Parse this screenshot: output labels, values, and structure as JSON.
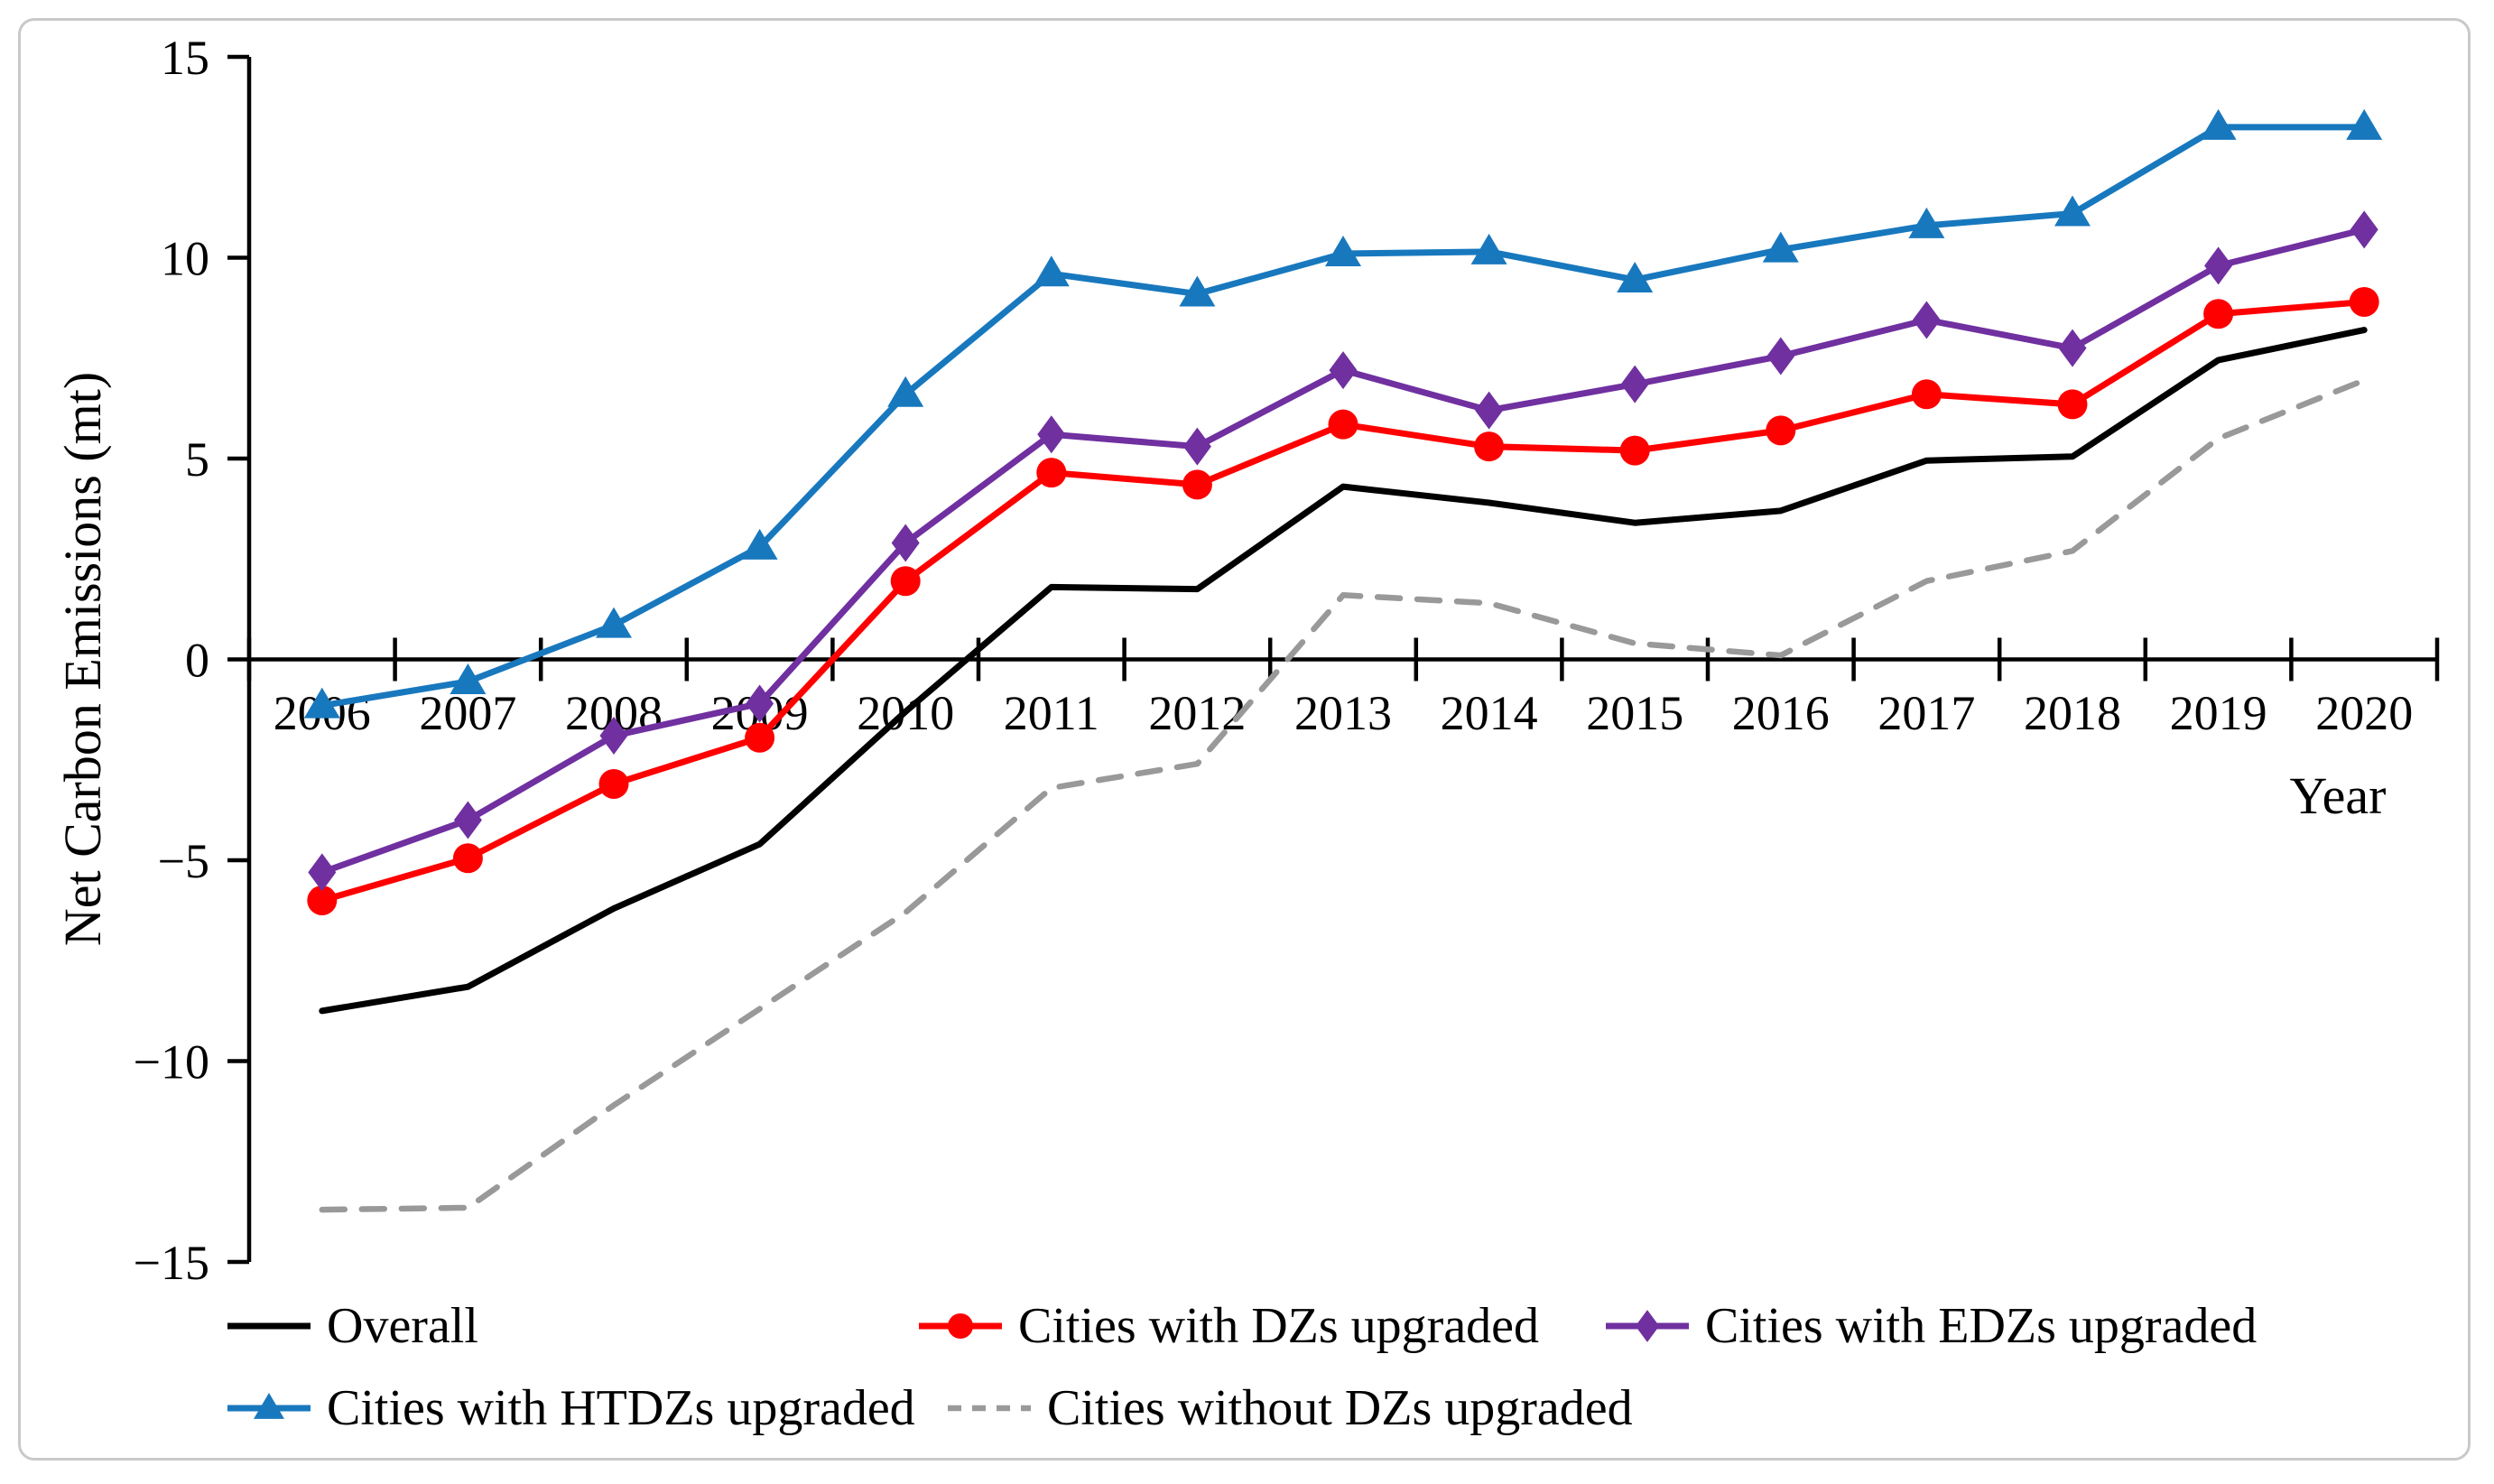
{
  "figure": {
    "background": "#FFFFFF",
    "border_color": "#C9C9C9"
  },
  "chart_data": {
    "type": "line",
    "title": "",
    "xlabel": "Year",
    "ylabel": "Net Carbon Emissions (mt)",
    "x": [
      "2006",
      "2007",
      "2008",
      "2009",
      "2010",
      "2011",
      "2012",
      "2013",
      "2014",
      "2015",
      "2016",
      "2017",
      "2018",
      "2019",
      "2020"
    ],
    "ylim": [
      -15,
      15
    ],
    "ytick_step": 5,
    "ytick_labels": [
      "15",
      "10",
      "5",
      "0",
      "−5",
      "−10",
      "−15"
    ],
    "grid": false,
    "axis_color": "#000000",
    "legend_position": "bottom",
    "series": [
      {
        "name": "Overall",
        "color": "#000000",
        "line": "solid",
        "marker": "none",
        "values": [
          -8.75,
          -8.15,
          -6.2,
          -4.6,
          -1.3,
          1.8,
          1.75,
          4.3,
          3.9,
          3.4,
          3.7,
          4.95,
          5.05,
          7.45,
          8.2
        ]
      },
      {
        "name": "Cities with DZs upgraded",
        "color": "#FF0000",
        "line": "solid",
        "marker": "circle",
        "values": [
          -6.0,
          -4.95,
          -3.1,
          -1.95,
          1.95,
          4.65,
          4.35,
          5.85,
          5.3,
          5.2,
          5.7,
          6.6,
          6.35,
          8.6,
          8.9
        ]
      },
      {
        "name": "Cities with EDZs upgraded",
        "color": "#7030A0",
        "line": "solid",
        "marker": "diamond",
        "values": [
          -5.3,
          -4.0,
          -1.9,
          -1.1,
          2.9,
          5.6,
          5.3,
          7.2,
          6.2,
          6.85,
          7.55,
          8.45,
          7.75,
          9.8,
          10.7
        ]
      },
      {
        "name": "Cities with HTDZs upgraded",
        "color": "#1878BE",
        "line": "solid",
        "marker": "triangle",
        "values": [
          -1.15,
          -0.55,
          0.85,
          2.8,
          6.6,
          9.6,
          9.1,
          10.1,
          10.15,
          9.45,
          10.2,
          10.8,
          11.1,
          13.25,
          13.25
        ]
      },
      {
        "name": "Cities without DZs upgraded",
        "color": "#999999",
        "line": "dashed",
        "marker": "none",
        "values": [
          -13.7,
          -13.65,
          -11.1,
          -8.7,
          -6.3,
          -3.2,
          -2.6,
          1.6,
          1.4,
          0.4,
          0.1,
          1.95,
          2.7,
          5.5,
          6.95
        ]
      }
    ]
  }
}
